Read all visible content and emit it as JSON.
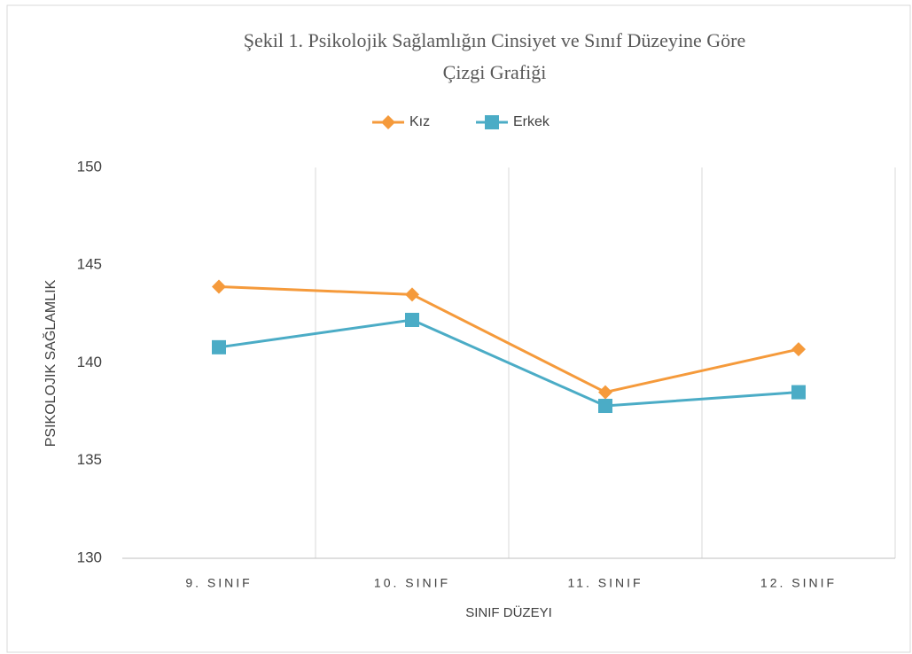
{
  "chart_data": {
    "type": "line",
    "title": [
      "Şekil 1. Psikolojik Sağlamlığın Cinsiyet ve Sınıf Düzeyine Göre",
      "Çizgi Grafiği"
    ],
    "x_label": "SINIF DÜZEYI",
    "y_label": "PSIKOLOJIK SAĞLAMLIK",
    "categories": [
      "9. SINIF",
      "10. SINIF",
      "11. SINIF",
      "12. SINIF"
    ],
    "series": [
      {
        "name": "Kız",
        "color": "#f59a3b",
        "marker": "diamond",
        "values": [
          143.9,
          143.5,
          138.5,
          140.7
        ]
      },
      {
        "name": "Erkek",
        "color": "#4bacc6",
        "marker": "square",
        "values": [
          140.8,
          142.2,
          137.8,
          138.5
        ]
      }
    ],
    "ylim": [
      130,
      150
    ],
    "yticks": [
      130,
      135,
      140,
      145,
      150
    ],
    "legend": "top"
  }
}
